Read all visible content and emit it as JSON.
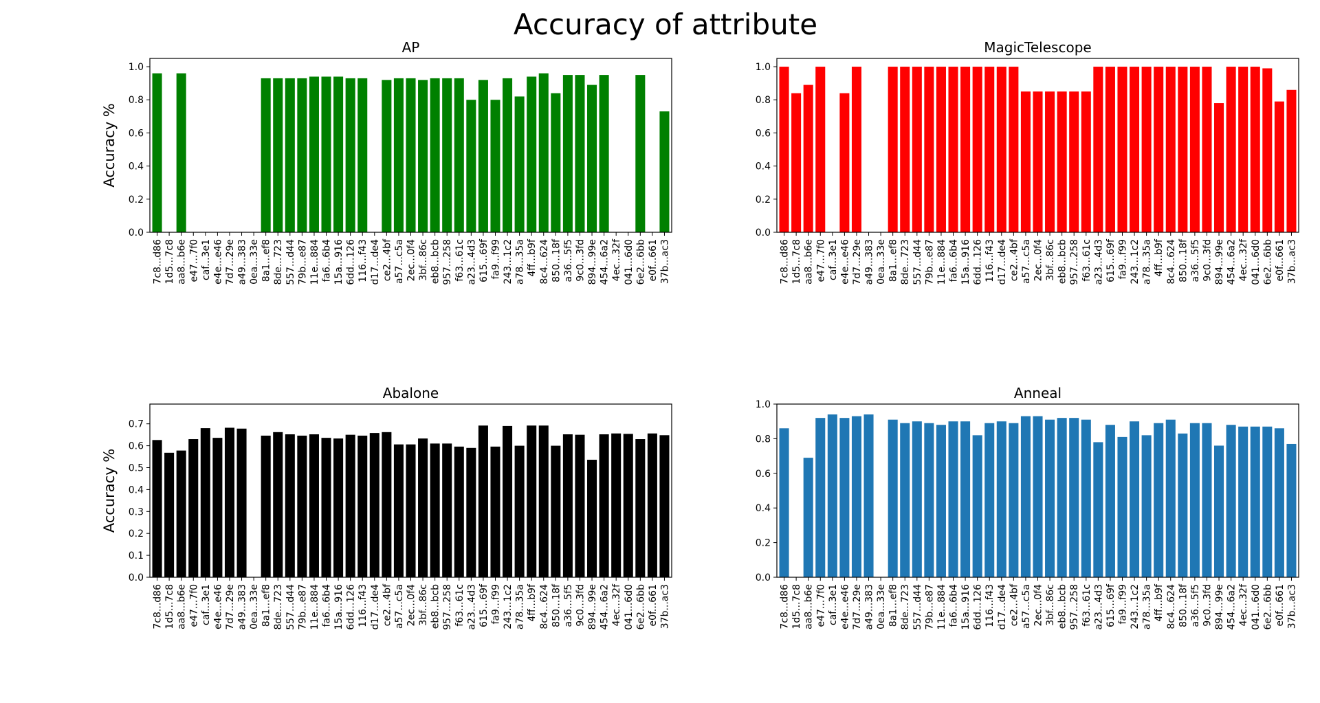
{
  "figure": {
    "suptitle": "Accuracy of attribute"
  },
  "chart_data": [
    {
      "type": "bar",
      "title": "AP",
      "xlabel": "",
      "ylabel": "Accuracy %",
      "color": "#008000",
      "ylim": [
        0,
        1.05
      ],
      "yticks": [
        0.0,
        0.2,
        0.4,
        0.6,
        0.8,
        1.0
      ],
      "ytick_labels": [
        "0.0",
        "0.2",
        "0.4",
        "0.6",
        "0.8",
        "1.0"
      ],
      "grid": false,
      "categories": [
        "7c8...d86",
        "1d5...7c8",
        "aa8...b6e",
        "e47...7f0",
        "caf...3e1",
        "e4e...e46",
        "7d7...29e",
        "a49...383",
        "0ea...33e",
        "8a1...ef8",
        "8de...723",
        "557...d44",
        "79b...e87",
        "11e...884",
        "fa6...6b4",
        "15a...916",
        "6dd...126",
        "116...f43",
        "d17...de4",
        "ce2...4bf",
        "a57...c5a",
        "2ec...0f4",
        "3bf...86c",
        "eb8...bcb",
        "957...258",
        "f63...61c",
        "a23...4d3",
        "615...69f",
        "fa9...f99",
        "243...1c2",
        "a78...35a",
        "4ff...b9f",
        "8c4...624",
        "850...18f",
        "a36...5f5",
        "9c0...3fd",
        "894...99e",
        "454...6a2",
        "4ec...32f",
        "041...6d0",
        "6e2...6bb",
        "e0f...661",
        "37b...ac3"
      ],
      "values": [
        0.96,
        0,
        0.96,
        0,
        0,
        0,
        0,
        0,
        0,
        0.93,
        0.93,
        0.93,
        0.93,
        0.94,
        0.94,
        0.94,
        0.93,
        0.93,
        0,
        0.92,
        0.93,
        0.93,
        0.92,
        0.93,
        0.93,
        0.93,
        0.8,
        0.92,
        0.8,
        0.93,
        0.82,
        0.94,
        0.96,
        0.84,
        0.95,
        0.95,
        0.89,
        0.95,
        0,
        0,
        0.95,
        0,
        0.73
      ]
    },
    {
      "type": "bar",
      "title": "MagicTelescope",
      "xlabel": "",
      "ylabel": "",
      "color": "#ff0000",
      "ylim": [
        0,
        1.05
      ],
      "yticks": [
        0.0,
        0.2,
        0.4,
        0.6,
        0.8,
        1.0
      ],
      "ytick_labels": [
        "0.0",
        "0.2",
        "0.4",
        "0.6",
        "0.8",
        "1.0"
      ],
      "grid": false,
      "categories": [
        "7c8...d86",
        "1d5...7c8",
        "aa8...b6e",
        "e47...7f0",
        "caf...3e1",
        "e4e...e46",
        "7d7...29e",
        "a49...383",
        "0ea...33e",
        "8a1...ef8",
        "8de...723",
        "557...d44",
        "79b...e87",
        "11e...884",
        "fa6...6b4",
        "15a...916",
        "6dd...126",
        "116...f43",
        "d17...de4",
        "ce2...4bf",
        "a57...c5a",
        "2ec...0f4",
        "3bf...86c",
        "eb8...bcb",
        "957...258",
        "f63...61c",
        "a23...4d3",
        "615...69f",
        "fa9...f99",
        "243...1c2",
        "a78...35a",
        "4ff...b9f",
        "8c4...624",
        "850...18f",
        "a36...5f5",
        "9c0...3fd",
        "894...99e",
        "454...6a2",
        "4ec...32f",
        "041...6d0",
        "6e2...6bb",
        "e0f...661",
        "37b...ac3"
      ],
      "values": [
        1.0,
        0.84,
        0.89,
        1.0,
        0,
        0.84,
        1.0,
        0,
        0,
        1.0,
        1.0,
        1.0,
        1.0,
        1.0,
        1.0,
        1.0,
        1.0,
        1.0,
        1.0,
        1.0,
        0.85,
        0.85,
        0.85,
        0.85,
        0.85,
        0.85,
        1.0,
        1.0,
        1.0,
        1.0,
        1.0,
        1.0,
        1.0,
        1.0,
        1.0,
        1.0,
        0.78,
        1.0,
        1.0,
        1.0,
        0.99,
        0.79,
        0.86
      ]
    },
    {
      "type": "bar",
      "title": "Abalone",
      "xlabel": "",
      "ylabel": "Accuracy %",
      "color": "#000000",
      "ylim": [
        0,
        0.79
      ],
      "yticks": [
        0.0,
        0.1,
        0.2,
        0.3,
        0.4,
        0.5,
        0.6,
        0.7
      ],
      "ytick_labels": [
        "0.0",
        "0.1",
        "0.2",
        "0.3",
        "0.4",
        "0.5",
        "0.6",
        "0.7"
      ],
      "grid": false,
      "categories": [
        "7c8...d86",
        "1d5...7c8",
        "aa8...b6e",
        "e47...7f0",
        "caf...3e1",
        "e4e...e46",
        "7d7...29e",
        "a49...383",
        "0ea...33e",
        "8a1...ef8",
        "8de...723",
        "557...d44",
        "79b...e87",
        "11e...884",
        "fa6...6b4",
        "15a...916",
        "6dd...126",
        "116...f43",
        "d17...de4",
        "ce2...4bf",
        "a57...c5a",
        "2ec...0f4",
        "3bf...86c",
        "eb8...bcb",
        "957...258",
        "f63...61c",
        "a23...4d3",
        "615...69f",
        "fa9...f99",
        "243...1c2",
        "a78...35a",
        "4ff...b9f",
        "8c4...624",
        "850...18f",
        "a36...5f5",
        "9c0...3fd",
        "894...99e",
        "454...6a2",
        "4ec...32f",
        "041...6d0",
        "6e2...6bb",
        "e0f...661",
        "37b...ac3"
      ],
      "values": [
        0.626,
        0.568,
        0.578,
        0.63,
        0.68,
        0.636,
        0.682,
        0.678,
        0,
        0.646,
        0.662,
        0.652,
        0.646,
        0.652,
        0.636,
        0.633,
        0.65,
        0.646,
        0.658,
        0.662,
        0.606,
        0.606,
        0.633,
        0.61,
        0.61,
        0.596,
        0.59,
        0.692,
        0.596,
        0.69,
        0.6,
        0.692,
        0.692,
        0.6,
        0.652,
        0.65,
        0.536,
        0.652,
        0.656,
        0.654,
        0.63,
        0.656,
        0.648
      ]
    },
    {
      "type": "bar",
      "title": "Anneal",
      "xlabel": "",
      "ylabel": "",
      "color": "#1f77b4",
      "ylim": [
        0,
        1.0
      ],
      "yticks": [
        0.0,
        0.2,
        0.4,
        0.6,
        0.8,
        1.0
      ],
      "ytick_labels": [
        "0.0",
        "0.2",
        "0.4",
        "0.6",
        "0.8",
        "1.0"
      ],
      "grid": false,
      "categories": [
        "7c8...d86",
        "1d5...7c8",
        "aa8...b6e",
        "e47...7f0",
        "caf...3e1",
        "e4e...e46",
        "7d7...29e",
        "a49...383",
        "0ea...33e",
        "8a1...ef8",
        "8de...723",
        "557...d44",
        "79b...e87",
        "11e...884",
        "fa6...6b4",
        "15a...916",
        "6dd...126",
        "116...f43",
        "d17...de4",
        "ce2...4bf",
        "a57...c5a",
        "2ec...0f4",
        "3bf...86c",
        "eb8...bcb",
        "957...258",
        "f63...61c",
        "a23...4d3",
        "615...69f",
        "fa9...f99",
        "243...1c2",
        "a78...35a",
        "4ff...b9f",
        "8c4...624",
        "850...18f",
        "a36...5f5",
        "9c0...3fd",
        "894...99e",
        "454...6a2",
        "4ec...32f",
        "041...6d0",
        "6e2...6bb",
        "e0f...661",
        "37b...ac3"
      ],
      "values": [
        0.86,
        0,
        0.69,
        0.92,
        0.94,
        0.92,
        0.93,
        0.94,
        0,
        0.91,
        0.89,
        0.9,
        0.89,
        0.88,
        0.9,
        0.9,
        0.82,
        0.89,
        0.9,
        0.89,
        0.93,
        0.93,
        0.91,
        0.92,
        0.92,
        0.91,
        0.78,
        0.88,
        0.81,
        0.9,
        0.82,
        0.89,
        0.91,
        0.83,
        0.89,
        0.89,
        0.76,
        0.88,
        0.87,
        0.87,
        0.87,
        0.86,
        0.77
      ]
    }
  ]
}
